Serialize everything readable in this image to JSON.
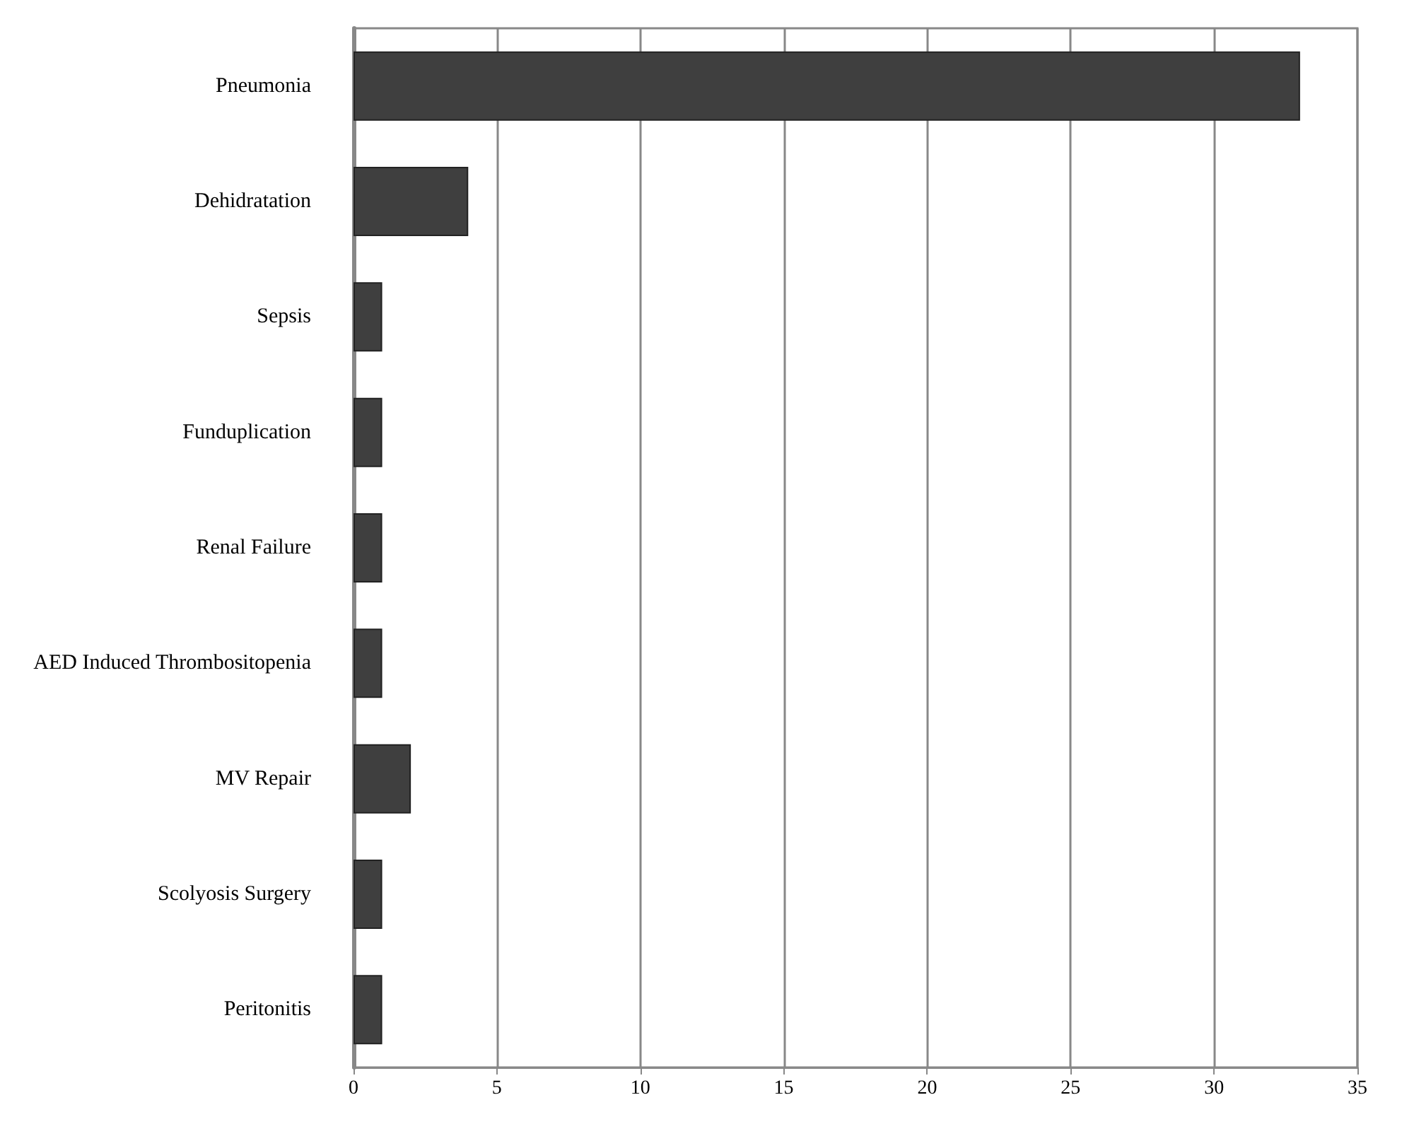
{
  "chart_data": {
    "type": "bar",
    "orientation": "horizontal",
    "categories": [
      "Pneumonia",
      "Dehidratation",
      "Sepsis",
      "Funduplication",
      "Renal Failure",
      "AED Induced Thrombositopenia",
      "MV Repair",
      "Scolyosis Surgery",
      "Peritonitis"
    ],
    "values": [
      33,
      4,
      1,
      1,
      1,
      1,
      2,
      1,
      1
    ],
    "color": "#3f3f3f",
    "xlim": [
      0,
      35
    ],
    "xticks": [
      0,
      5,
      10,
      15,
      20,
      25,
      30,
      35
    ],
    "grid": "x"
  }
}
